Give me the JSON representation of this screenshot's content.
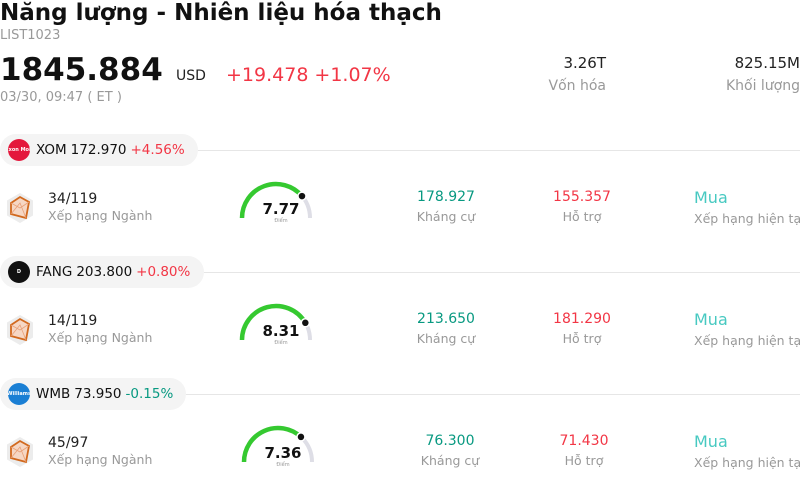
{
  "header": {
    "title": "Năng lượng - Nhiên liệu hóa thạch",
    "code": "LIST1023",
    "price": "1845.884",
    "currency": "USD",
    "change": "+19.478",
    "change_pct": "+1.07%",
    "timestamp": "03/30, 09:47  ( ET )"
  },
  "stats": {
    "market_cap_value": "3.26T",
    "market_cap_label": "Vốn hóa",
    "volume_value": "825.15M",
    "volume_label": "Khối lượng"
  },
  "stocks": [
    {
      "symbol": "XOM",
      "price": "172.970",
      "change": "+4.56%",
      "direction": "up",
      "logo_text": "Exxon Mobil",
      "logo_color": "#e4173c",
      "rank": "34/119",
      "rank_label": "Xếp hạng Ngành",
      "score": "7.77",
      "score_fraction": 0.777,
      "score_label": "Điểm",
      "resistance": "178.927",
      "resistance_label": "Kháng cự",
      "support": "155.357",
      "support_label": "Hỗ trợ",
      "rating": "Mua",
      "rating_label": "Xếp hạng hiện tại"
    },
    {
      "symbol": "FANG",
      "price": "203.800",
      "change": "+0.80%",
      "direction": "up",
      "logo_text": "D",
      "logo_color": "#111111",
      "rank": "14/119",
      "rank_label": "Xếp hạng Ngành",
      "score": "8.31",
      "score_fraction": 0.831,
      "score_label": "Điểm",
      "resistance": "213.650",
      "resistance_label": "Kháng cự",
      "support": "181.290",
      "support_label": "Hỗ trợ",
      "rating": "Mua",
      "rating_label": "Xếp hạng hiện tại"
    },
    {
      "symbol": "WMB",
      "price": "73.950",
      "change": "-0.15%",
      "direction": "down",
      "logo_text": "Williams",
      "logo_color": "#1a7fd4",
      "rank": "45/97",
      "rank_label": "Xếp hạng Ngành",
      "score": "7.36",
      "score_fraction": 0.736,
      "score_label": "Điểm",
      "resistance": "76.300",
      "resistance_label": "Kháng cự",
      "support": "71.430",
      "support_label": "Hỗ trợ",
      "rating": "Mua",
      "rating_label": "Xếp hạng hiện tại"
    }
  ],
  "colors": {
    "up": "#f23645",
    "down": "#089981",
    "gauge_fill": "#35c930",
    "gauge_track": "#dedee6",
    "rating": "#47c9c1"
  }
}
